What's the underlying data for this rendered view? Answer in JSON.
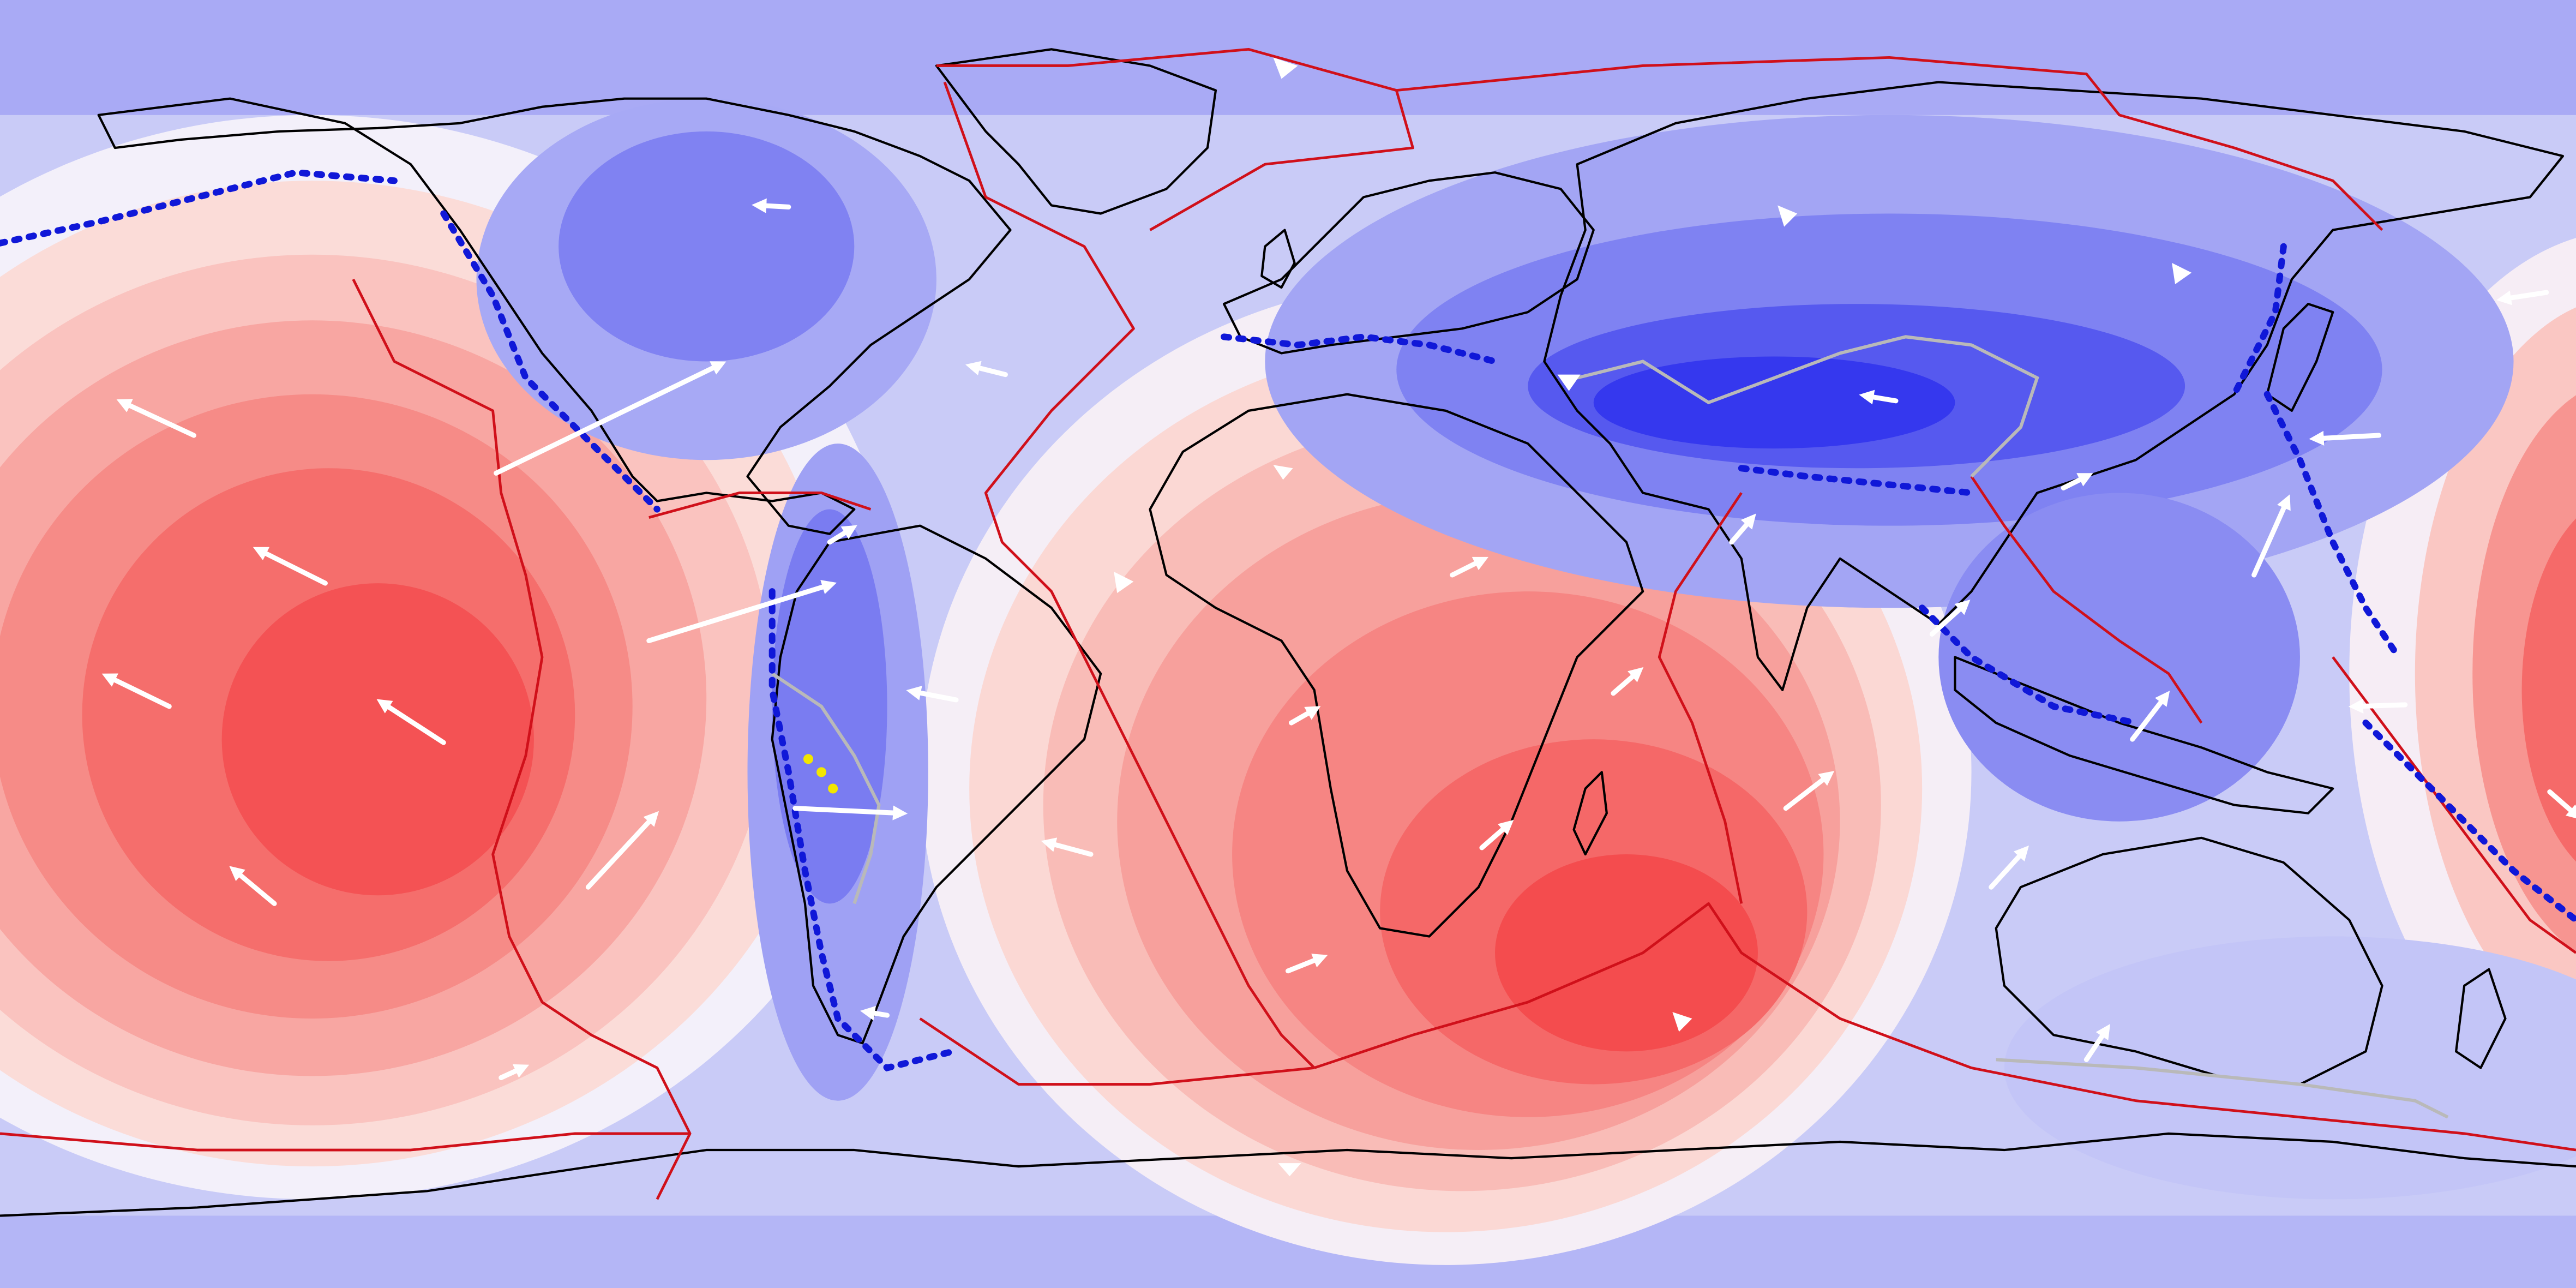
{
  "map": {
    "projection": "equirectangular",
    "style": "global tectonic model: colour field (red to blue) with continent outlines, plate boundaries, subduction zones and velocity vectors",
    "colors": {
      "field_deep_red": "#f4474a",
      "field_mid_red": "#f7918f",
      "field_light_red": "#fbd2cf",
      "field_neutral": "#f1f1fa",
      "field_light_blue": "#c7c9f7",
      "field_mid_blue": "#9a9cf3",
      "field_deep_blue": "#4143ef",
      "coastline": "#000000",
      "plate_boundary": "#d0101a",
      "subduction_teeth": "#1018d8",
      "inactive_boundary": "#b9b9b9",
      "velocity_arrow": "#ffffff",
      "andes_markers": "#f2e600"
    },
    "layers": [
      "field",
      "coastlines",
      "plate-boundaries",
      "subduction-zones",
      "velocity-arrows"
    ],
    "legend": null,
    "title": null
  }
}
